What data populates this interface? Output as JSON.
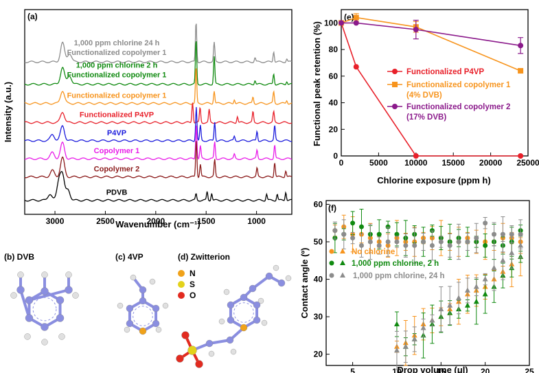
{
  "panels": {
    "a": "(a)",
    "e": "(e)",
    "f": "(f)",
    "b": "(b) DVB",
    "c": "(c) 4VP",
    "d": "(d) Zwitterion"
  },
  "atoms": [
    "N",
    "S",
    "O"
  ],
  "atom_colors": {
    "N": "#f0a21a",
    "S": "#e3d21b",
    "O": "#e22b20",
    "C": "#8a8ee0",
    "H": "#e0e0e0"
  },
  "chart_data": [
    {
      "type": "line",
      "id": "spectra",
      "xlabel": "Wavenumber (cm⁻¹)",
      "ylabel": "Intensity (a.u.)",
      "xlim": [
        3300,
        650
      ],
      "xticks": [
        3000,
        2500,
        2000,
        1500,
        1000
      ],
      "series": [
        {
          "name": "1,000 ppm chlorine 24 h",
          "name2": "Functionalized copolymer 1",
          "color": "#8c8c8c",
          "baseline": 6.9,
          "peaks": [
            [
              2925,
              0.9
            ],
            [
              2855,
              0.4
            ],
            [
              1600,
              1.9
            ],
            [
              1420,
              0.9
            ],
            [
              1015,
              0.2
            ],
            [
              830,
              0.5
            ],
            [
              700,
              0.15
            ]
          ]
        },
        {
          "name": "1,000 ppm chlorine 2 h",
          "name2": "Functionalized copolymer 1",
          "color": "#108a10",
          "baseline": 5.85,
          "peaks": [
            [
              2925,
              0.8
            ],
            [
              2855,
              0.4
            ],
            [
              1600,
              2.1
            ],
            [
              1420,
              1.3
            ],
            [
              1015,
              0.2
            ],
            [
              830,
              0.5
            ],
            [
              700,
              0.15
            ]
          ]
        },
        {
          "name": "Functionalized copolymer 1",
          "color": "#f7941d",
          "baseline": 4.95,
          "peaks": [
            [
              2925,
              0.6
            ],
            [
              1600,
              1.7
            ],
            [
              1420,
              0.6
            ],
            [
              1220,
              0.2
            ],
            [
              1035,
              0.3
            ],
            [
              830,
              0.55
            ],
            [
              700,
              0.15
            ]
          ]
        },
        {
          "name": "Functionalized P4VP",
          "color": "#e8202a",
          "baseline": 4.05,
          "peaks": [
            [
              2925,
              0.5
            ],
            [
              1635,
              1.0
            ],
            [
              1560,
              0.7
            ],
            [
              1470,
              0.6
            ],
            [
              1190,
              0.3
            ],
            [
              1035,
              0.5
            ],
            [
              830,
              0.5
            ]
          ]
        },
        {
          "name": "P4VP",
          "color": "#1b1bdc",
          "baseline": 3.2,
          "peaks": [
            [
              3025,
              0.3
            ],
            [
              2925,
              0.7
            ],
            [
              1598,
              1.6
            ],
            [
              1557,
              0.7
            ],
            [
              1415,
              0.9
            ],
            [
              1220,
              0.2
            ],
            [
              995,
              0.45
            ],
            [
              820,
              0.7
            ]
          ]
        },
        {
          "name": "Copolymer 1",
          "color": "#e81ce8",
          "baseline": 2.35,
          "peaks": [
            [
              3025,
              0.3
            ],
            [
              2925,
              0.75
            ],
            [
              1598,
              1.6
            ],
            [
              1557,
              0.6
            ],
            [
              1415,
              0.8
            ],
            [
              1220,
              0.2
            ],
            [
              995,
              0.4
            ],
            [
              820,
              0.65
            ]
          ]
        },
        {
          "name": "Copolymer 2",
          "color": "#8b1a1a",
          "baseline": 1.5,
          "peaks": [
            [
              3025,
              0.3
            ],
            [
              2925,
              0.9
            ],
            [
              1598,
              1.7
            ],
            [
              1557,
              0.6
            ],
            [
              1415,
              0.8
            ],
            [
              995,
              0.4
            ],
            [
              820,
              0.7
            ],
            [
              710,
              0.3
            ]
          ]
        },
        {
          "name": "PDVB",
          "color": "#000000",
          "baseline": 0.4,
          "peaks": [
            [
              3050,
              0.3
            ],
            [
              2960,
              0.9
            ],
            [
              2925,
              1.1
            ],
            [
              2870,
              0.5
            ],
            [
              1600,
              0.3
            ],
            [
              1490,
              0.4
            ],
            [
              1445,
              0.35
            ],
            [
              900,
              0.3
            ],
            [
              795,
              0.3
            ],
            [
              710,
              0.4
            ]
          ]
        }
      ]
    },
    {
      "type": "line",
      "id": "retention",
      "xlabel": "Chlorine exposure (ppm h)",
      "ylabel": "Functional peak retention (%)",
      "xlim": [
        0,
        25000
      ],
      "ylim": [
        0,
        110
      ],
      "xticks": [
        0,
        5000,
        10000,
        15000,
        20000,
        25000
      ],
      "yticks": [
        0,
        20,
        40,
        60,
        80,
        100
      ],
      "series": [
        {
          "name": "Functionalized P4VP",
          "color": "#e8202a",
          "marker": "circle",
          "x": [
            0,
            2000,
            10000,
            24000
          ],
          "y": [
            100,
            67,
            0,
            0
          ],
          "err": [
            0,
            0,
            0,
            0
          ]
        },
        {
          "name": "Functionalized copolymer 1",
          "name2": "(4% DVB)",
          "color": "#f7941d",
          "marker": "square",
          "x": [
            0,
            2000,
            10000,
            24000
          ],
          "y": [
            100,
            104,
            97,
            64
          ],
          "err": [
            0,
            3,
            4,
            0
          ]
        },
        {
          "name": "Functionalized copolymer 2",
          "name2": "(17% DVB)",
          "color": "#8b1a8b",
          "marker": "circle",
          "x": [
            0,
            2000,
            10000,
            24000
          ],
          "y": [
            100,
            100,
            95,
            83
          ],
          "err": [
            0,
            0,
            7,
            6
          ]
        }
      ]
    },
    {
      "type": "scatter",
      "id": "contact",
      "xlabel": "Drop volume (μl)",
      "ylabel": "Contact angle (º)",
      "xlim": [
        2,
        25
      ],
      "ylim": [
        17,
        61
      ],
      "xticks": [
        5,
        10,
        15,
        20,
        25
      ],
      "yticks": [
        20,
        30,
        40,
        50,
        60
      ],
      "series": [
        {
          "name": "No chlorine",
          "color": "#f7941d",
          "advancing": [
            [
              3,
              53
            ],
            [
              4,
              54
            ],
            [
              5,
              52
            ],
            [
              6,
              52
            ],
            [
              7,
              51
            ],
            [
              8,
              50
            ],
            [
              9,
              49
            ],
            [
              10,
              51
            ],
            [
              11,
              50
            ],
            [
              12,
              50
            ],
            [
              13,
              51
            ],
            [
              14,
              51
            ],
            [
              15,
              51
            ],
            [
              16,
              50
            ],
            [
              17,
              50
            ],
            [
              18,
              51
            ],
            [
              19,
              50
            ],
            [
              20,
              50
            ],
            [
              21,
              50
            ],
            [
              22,
              51
            ],
            [
              23,
              51
            ],
            [
              24,
              50
            ]
          ],
          "receding": [
            [
              10,
              22
            ],
            [
              11,
              23
            ],
            [
              12,
              25
            ],
            [
              13,
              28
            ],
            [
              14,
              29
            ],
            [
              15,
              30
            ],
            [
              16,
              32
            ],
            [
              17,
              34
            ],
            [
              18,
              36
            ],
            [
              19,
              37
            ],
            [
              20,
              38
            ],
            [
              21,
              40
            ],
            [
              22,
              42
            ],
            [
              23,
              44
            ],
            [
              24,
              46
            ]
          ]
        },
        {
          "name": "1,000 ppm chlorine, 2 h",
          "color": "#108a10",
          "advancing": [
            [
              3,
              51
            ],
            [
              4,
              52
            ],
            [
              5,
              55
            ],
            [
              6,
              54
            ],
            [
              7,
              52
            ],
            [
              8,
              52
            ],
            [
              9,
              54
            ],
            [
              10,
              52
            ],
            [
              11,
              51
            ],
            [
              12,
              52
            ],
            [
              13,
              50
            ],
            [
              14,
              53
            ],
            [
              15,
              51
            ],
            [
              16,
              50
            ],
            [
              17,
              51
            ],
            [
              18,
              50
            ],
            [
              19,
              50
            ],
            [
              20,
              49
            ],
            [
              21,
              50
            ],
            [
              22,
              49
            ],
            [
              23,
              50
            ],
            [
              24,
              53
            ]
          ],
          "receding": [
            [
              10,
              28
            ],
            [
              11,
              22
            ],
            [
              12,
              24
            ],
            [
              13,
              25
            ],
            [
              14,
              28
            ],
            [
              15,
              30
            ],
            [
              16,
              31
            ],
            [
              17,
              32
            ],
            [
              18,
              33
            ],
            [
              19,
              34
            ],
            [
              20,
              36
            ],
            [
              21,
              38
            ],
            [
              22,
              41
            ],
            [
              23,
              43
            ],
            [
              24,
              46
            ]
          ]
        },
        {
          "name": "1,000 ppm chlorine, 24 h",
          "color": "#8c8c8c",
          "advancing": [
            [
              3,
              53
            ],
            [
              4,
              52
            ],
            [
              5,
              51
            ],
            [
              6,
              49
            ],
            [
              7,
              50
            ],
            [
              8,
              49
            ],
            [
              9,
              50
            ],
            [
              10,
              50
            ],
            [
              11,
              49
            ],
            [
              12,
              49
            ],
            [
              13,
              50
            ],
            [
              14,
              49
            ],
            [
              15,
              50
            ],
            [
              16,
              49
            ],
            [
              17,
              50
            ],
            [
              18,
              50
            ],
            [
              19,
              51
            ],
            [
              20,
              55
            ],
            [
              21,
              52
            ],
            [
              22,
              52
            ],
            [
              23,
              52
            ],
            [
              24,
              52
            ]
          ],
          "receding": [
            [
              10,
              21
            ],
            [
              11,
              22
            ],
            [
              12,
              24
            ],
            [
              13,
              27
            ],
            [
              14,
              29
            ],
            [
              15,
              32
            ],
            [
              16,
              33
            ],
            [
              17,
              35
            ],
            [
              18,
              37
            ],
            [
              19,
              38
            ],
            [
              20,
              40
            ],
            [
              21,
              43
            ],
            [
              22,
              45
            ],
            [
              23,
              47
            ],
            [
              24,
              49
            ]
          ]
        }
      ]
    }
  ]
}
